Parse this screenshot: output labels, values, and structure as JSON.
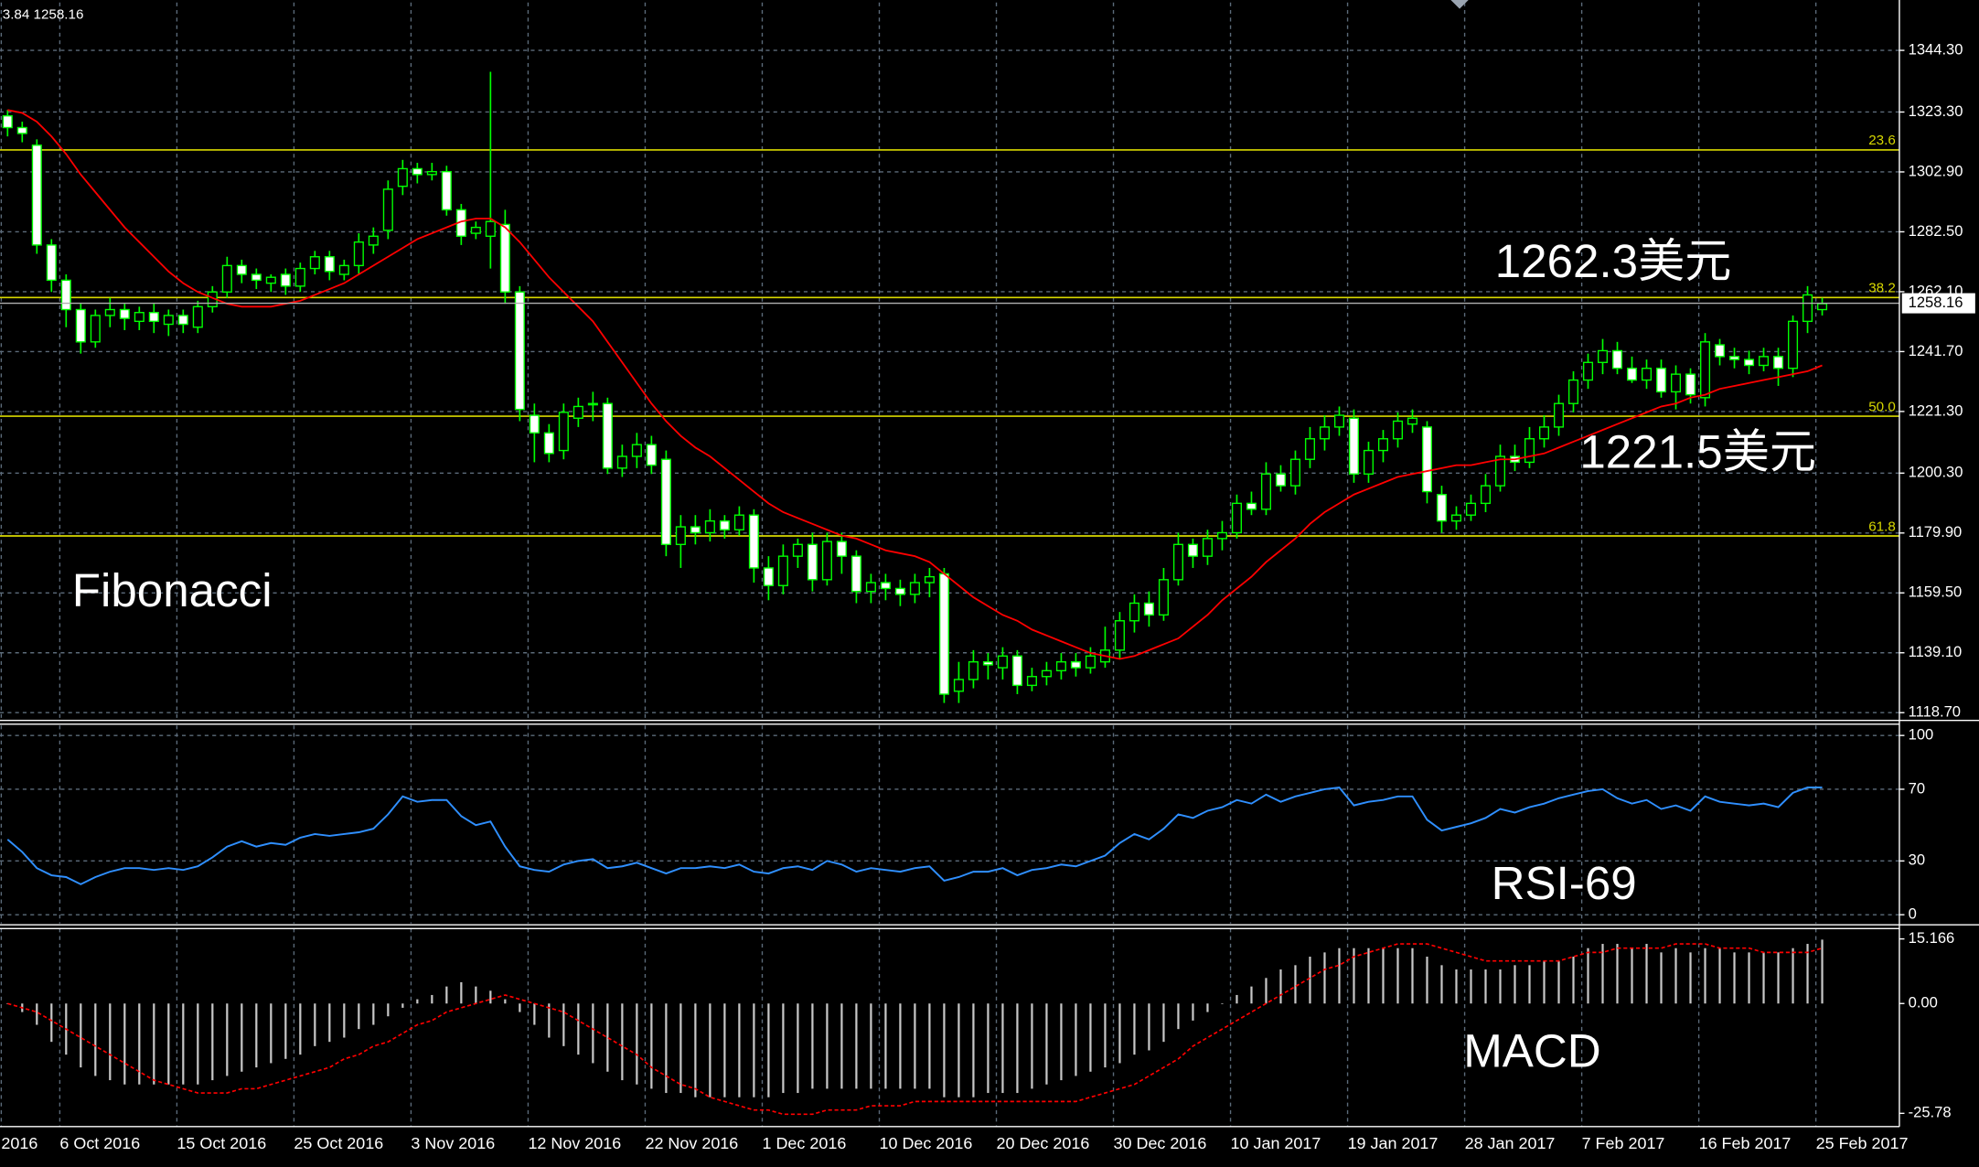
{
  "chart_data": [
    {
      "type": "candlestick",
      "header": "3.84 1258.16",
      "categories": [
        "2016",
        null,
        null,
        null,
        "6 Oct 2016",
        null,
        null,
        null,
        null,
        null,
        null,
        null,
        "15 Oct 2016",
        null,
        null,
        null,
        null,
        null,
        null,
        null,
        "25 Oct 2016",
        null,
        null,
        null,
        null,
        null,
        null,
        null,
        "3 Nov 2016",
        null,
        null,
        null,
        null,
        null,
        null,
        null,
        "12 Nov 2016",
        null,
        null,
        null,
        null,
        null,
        null,
        null,
        "22 Nov 2016",
        null,
        null,
        null,
        null,
        null,
        null,
        null,
        "1 Dec 2016",
        null,
        null,
        null,
        null,
        null,
        null,
        null,
        "10 Dec 2016",
        null,
        null,
        null,
        null,
        null,
        null,
        null,
        "20 Dec 2016",
        null,
        null,
        null,
        null,
        null,
        null,
        null,
        "30 Dec 2016",
        null,
        null,
        null,
        null,
        null,
        null,
        null,
        "10 Jan 2017",
        null,
        null,
        null,
        null,
        null,
        null,
        null,
        "19 Jan 2017",
        null,
        null,
        null,
        null,
        null,
        null,
        null,
        "28 Jan 2017",
        null,
        null,
        null,
        null,
        null,
        null,
        null,
        "7 Feb 2017",
        null,
        null,
        null,
        null,
        null,
        null,
        null,
        "16 Feb 2017",
        null,
        null,
        null,
        null,
        null,
        null,
        null,
        "25 Feb 2017"
      ],
      "open": [
        1322,
        1318,
        1312,
        1278,
        1266,
        1256,
        1245,
        1254,
        1256,
        1252,
        1255,
        1251,
        1254,
        1250,
        1257,
        1262,
        1271,
        1268,
        1265,
        1268,
        1264,
        1270,
        1274,
        1268,
        1271,
        1278,
        1283,
        1298,
        1304,
        1302,
        1303,
        1290,
        1282,
        1281,
        1285,
        1262,
        1220,
        1214,
        1208,
        1219,
        1224,
        1224,
        1202,
        1206,
        1210,
        1205,
        1176,
        1182,
        1180,
        1184,
        1181,
        1186,
        1168,
        1162,
        1172,
        1176,
        1164,
        1177,
        1172,
        1160,
        1163,
        1161,
        1159,
        1163,
        1166,
        1126,
        1130,
        1136,
        1134,
        1138,
        1128,
        1131,
        1133,
        1136,
        1134,
        1136,
        1140,
        1150,
        1156,
        1152,
        1164,
        1176,
        1172,
        1178,
        1180,
        1190,
        1188,
        1200,
        1196,
        1205,
        1212,
        1216,
        1219,
        1200,
        1208,
        1212,
        1217,
        1216,
        1193,
        1184,
        1186,
        1190,
        1196,
        1206,
        1204,
        1212,
        1216,
        1224,
        1232,
        1238,
        1242,
        1236,
        1232,
        1236,
        1228,
        1234,
        1226,
        1244,
        1240,
        1239,
        1237,
        1240,
        1236,
        1252,
        1256
      ],
      "high": [
        1324,
        1320,
        1314,
        1280,
        1268,
        1258,
        1256,
        1260,
        1258,
        1257,
        1258,
        1256,
        1256,
        1259,
        1264,
        1274,
        1273,
        1270,
        1268,
        1270,
        1272,
        1276,
        1276,
        1273,
        1282,
        1284,
        1300,
        1307,
        1306,
        1306,
        1305,
        1292,
        1286,
        1337,
        1290,
        1264,
        1224,
        1217,
        1224,
        1226,
        1228,
        1226,
        1210,
        1214,
        1213,
        1208,
        1186,
        1186,
        1188,
        1186,
        1189,
        1188,
        1172,
        1176,
        1178,
        1180,
        1180,
        1180,
        1174,
        1166,
        1166,
        1164,
        1166,
        1168,
        1168,
        1136,
        1140,
        1139,
        1141,
        1140,
        1134,
        1136,
        1139,
        1139,
        1141,
        1148,
        1153,
        1159,
        1160,
        1168,
        1180,
        1178,
        1181,
        1184,
        1193,
        1194,
        1204,
        1203,
        1208,
        1216,
        1220,
        1223,
        1222,
        1211,
        1215,
        1221,
        1222,
        1218,
        1196,
        1189,
        1193,
        1200,
        1210,
        1210,
        1216,
        1220,
        1227,
        1235,
        1241,
        1246,
        1245,
        1240,
        1239,
        1239,
        1237,
        1236,
        1248,
        1246,
        1243,
        1242,
        1243,
        1243,
        1254,
        1264,
        1260
      ],
      "low": [
        1315,
        1313,
        1275,
        1262,
        1250,
        1241,
        1243,
        1250,
        1249,
        1249,
        1248,
        1247,
        1248,
        1248,
        1255,
        1260,
        1265,
        1263,
        1262,
        1261,
        1262,
        1268,
        1266,
        1266,
        1268,
        1275,
        1280,
        1295,
        1299,
        1300,
        1288,
        1278,
        1280,
        1270,
        1258,
        1218,
        1204,
        1204,
        1205,
        1216,
        1218,
        1200,
        1199,
        1202,
        1200,
        1172,
        1168,
        1176,
        1177,
        1178,
        1179,
        1163,
        1157,
        1159,
        1168,
        1160,
        1162,
        1166,
        1156,
        1156,
        1157,
        1155,
        1156,
        1158,
        1122,
        1122,
        1127,
        1130,
        1130,
        1125,
        1126,
        1128,
        1130,
        1131,
        1132,
        1134,
        1137,
        1146,
        1148,
        1150,
        1162,
        1168,
        1169,
        1174,
        1178,
        1186,
        1186,
        1194,
        1193,
        1202,
        1208,
        1213,
        1197,
        1197,
        1204,
        1209,
        1214,
        1190,
        1180,
        1181,
        1184,
        1187,
        1194,
        1201,
        1202,
        1209,
        1213,
        1221,
        1229,
        1234,
        1234,
        1231,
        1229,
        1226,
        1222,
        1224,
        1223,
        1237,
        1236,
        1234,
        1235,
        1230,
        1233,
        1248,
        1254
      ],
      "close": [
        1318,
        1316,
        1278,
        1266,
        1256,
        1245,
        1254,
        1256,
        1253,
        1255,
        1252,
        1254,
        1251,
        1257,
        1262,
        1271,
        1268,
        1266,
        1267,
        1264,
        1270,
        1274,
        1269,
        1271,
        1279,
        1281,
        1297,
        1304,
        1302,
        1303,
        1290,
        1281,
        1284,
        1286,
        1262,
        1222,
        1214,
        1207,
        1221,
        1223,
        1224,
        1202,
        1206,
        1210,
        1203,
        1176,
        1182,
        1180,
        1184,
        1181,
        1186,
        1168,
        1162,
        1172,
        1176,
        1164,
        1177,
        1172,
        1160,
        1163,
        1161,
        1159,
        1163,
        1165,
        1125,
        1130,
        1136,
        1135,
        1138,
        1128,
        1131,
        1133,
        1136,
        1134,
        1138,
        1140,
        1150,
        1156,
        1152,
        1164,
        1176,
        1172,
        1178,
        1180,
        1190,
        1188,
        1200,
        1196,
        1205,
        1212,
        1216,
        1220,
        1200,
        1208,
        1212,
        1218,
        1219,
        1194,
        1184,
        1186,
        1190,
        1196,
        1206,
        1204,
        1212,
        1216,
        1224,
        1232,
        1238,
        1242,
        1236,
        1232,
        1236,
        1228,
        1234,
        1227,
        1245,
        1240,
        1239,
        1237,
        1240,
        1236,
        1252,
        1261,
        1258
      ],
      "bull_color": "#000000",
      "bear_color": "#ffffff",
      "candle_color": "#00ff00",
      "moving_average": {
        "color": "#ff0000",
        "values": [
          1324,
          1323,
          1320,
          1315,
          1309,
          1302,
          1296,
          1290,
          1284,
          1279,
          1274,
          1269,
          1265,
          1262,
          1260,
          1258,
          1257,
          1257,
          1257,
          1258,
          1259,
          1261,
          1263,
          1265,
          1268,
          1271,
          1274,
          1277,
          1280,
          1282,
          1284,
          1286,
          1287,
          1287,
          1284,
          1279,
          1273,
          1267,
          1262,
          1257,
          1252,
          1245,
          1238,
          1231,
          1224,
          1218,
          1213,
          1209,
          1206,
          1202,
          1198,
          1194,
          1190,
          1187,
          1185,
          1183,
          1181,
          1179,
          1178,
          1176,
          1174,
          1173,
          1172,
          1170,
          1166,
          1162,
          1158,
          1155,
          1152,
          1150,
          1147,
          1145,
          1143,
          1141,
          1139,
          1138,
          1137,
          1138,
          1140,
          1142,
          1144,
          1148,
          1152,
          1157,
          1161,
          1165,
          1170,
          1174,
          1178,
          1183,
          1187,
          1190,
          1193,
          1195,
          1197,
          1199,
          1200,
          1201,
          1202,
          1203,
          1203,
          1204,
          1205,
          1205,
          1206,
          1207,
          1209,
          1211,
          1213,
          1215,
          1217,
          1219,
          1221,
          1223,
          1224,
          1226,
          1227,
          1229,
          1230,
          1231,
          1232,
          1233,
          1234,
          1235,
          1237
        ]
      },
      "ylim": [
        1116.5,
        1360.6
      ],
      "yticks": [
        {
          "value": 1118.7,
          "label": "1118.70"
        },
        {
          "value": 1139.1,
          "label": "1139.10"
        },
        {
          "value": 1159.5,
          "label": "1159.50"
        },
        {
          "value": 1179.9,
          "label": "1179.90"
        },
        {
          "value": 1200.3,
          "label": "1200.30"
        },
        {
          "value": 1221.3,
          "label": "1221.30"
        },
        {
          "value": 1241.7,
          "label": "1241.70"
        },
        {
          "value": 1262.1,
          "label": "1262.10"
        },
        {
          "value": 1282.5,
          "label": "1282.50"
        },
        {
          "value": 1302.9,
          "label": "1302.90"
        },
        {
          "value": 1323.3,
          "label": "1323.30"
        },
        {
          "value": 1344.3,
          "label": "1344.30"
        }
      ],
      "grid": true,
      "fibonacci": {
        "color": "#d8d800",
        "levels": [
          {
            "value": 1310.4,
            "label": "23.6"
          },
          {
            "value": 1260.1,
            "label": "38.2"
          },
          {
            "value": 1219.7,
            "label": "50.0"
          },
          {
            "value": 1178.9,
            "label": "61.8"
          }
        ]
      },
      "last_price": 1258.16,
      "annotations": [
        "1262.3美元",
        "1221.5美元",
        "Fibonacci"
      ]
    },
    {
      "type": "line",
      "annotation": "RSI-69",
      "series": [
        {
          "color": "#2f8fff",
          "values": [
            42,
            35,
            26,
            22,
            21,
            17,
            21,
            24,
            26,
            26,
            25,
            26,
            25,
            27,
            32,
            38,
            41,
            38,
            40,
            39,
            43,
            45,
            44,
            45,
            46,
            48,
            56,
            66,
            63,
            64,
            64,
            55,
            50,
            52,
            38,
            27,
            25,
            24,
            28,
            30,
            31,
            26,
            27,
            29,
            26,
            23,
            26,
            26,
            27,
            26,
            28,
            24,
            23,
            26,
            27,
            25,
            30,
            28,
            24,
            26,
            25,
            24,
            26,
            27,
            19,
            21,
            24,
            24,
            26,
            22,
            25,
            26,
            28,
            27,
            30,
            33,
            40,
            45,
            42,
            48,
            56,
            54,
            58,
            60,
            64,
            62,
            67,
            63,
            66,
            68,
            70,
            71,
            61,
            63,
            64,
            66,
            66,
            53,
            47,
            49,
            51,
            54,
            59,
            57,
            60,
            62,
            65,
            67,
            69,
            70,
            65,
            62,
            64,
            59,
            61,
            58,
            66,
            63,
            62,
            61,
            62,
            60,
            68,
            71,
            71
          ]
        }
      ],
      "ylim": [
        -4.9,
        105.6
      ],
      "yticks": [
        0,
        30,
        70,
        100
      ],
      "grid": true
    },
    {
      "type": "macd",
      "annotation": "MACD",
      "histogram": {
        "color": "#c8c8c8",
        "values": [
          0,
          -2,
          -5,
          -9,
          -12,
          -15,
          -17,
          -18,
          -19,
          -19,
          -19,
          -19,
          -19,
          -19,
          -18,
          -17,
          -16,
          -15,
          -14,
          -13,
          -12,
          -10,
          -9,
          -8,
          -6,
          -5,
          -3,
          -1,
          1,
          2,
          4,
          5,
          4,
          3,
          1,
          -2,
          -5,
          -8,
          -10,
          -12,
          -14,
          -16,
          -18,
          -19,
          -20,
          -21,
          -21,
          -22,
          -22,
          -22,
          -22,
          -22,
          -22,
          -21,
          -21,
          -20,
          -20,
          -20,
          -20,
          -20,
          -20,
          -20,
          -20,
          -20,
          -22,
          -22,
          -22,
          -21,
          -21,
          -21,
          -20,
          -19,
          -18,
          -17,
          -16,
          -15,
          -14,
          -12,
          -11,
          -9,
          -6,
          -4,
          -2,
          0,
          2,
          4,
          6,
          8,
          9,
          11,
          12,
          13,
          13,
          13,
          13,
          13,
          13,
          11,
          9,
          8,
          8,
          8,
          8,
          9,
          9,
          10,
          10,
          11,
          13,
          14,
          14,
          13,
          14,
          12,
          13,
          12,
          13,
          13,
          12,
          12,
          12,
          12,
          13,
          14,
          15
        ]
      },
      "signal": {
        "color": "#ff0000",
        "values": [
          0,
          -1,
          -2,
          -4,
          -6,
          -8,
          -10,
          -12,
          -14,
          -16,
          -18,
          -19,
          -20,
          -21,
          -21,
          -21,
          -20,
          -20,
          -19,
          -18,
          -17,
          -16,
          -15,
          -13,
          -12,
          -10,
          -9,
          -7,
          -5,
          -4,
          -2,
          -1,
          0,
          1,
          2,
          1,
          0,
          -1,
          -2,
          -4,
          -6,
          -8,
          -10,
          -12,
          -15,
          -17,
          -19,
          -20,
          -22,
          -23,
          -24,
          -25,
          -25,
          -26,
          -26,
          -26,
          -25,
          -25,
          -25,
          -24,
          -24,
          -24,
          -23,
          -23,
          -23,
          -23,
          -23,
          -23,
          -23,
          -23,
          -23,
          -23,
          -23,
          -23,
          -22,
          -21,
          -20,
          -19,
          -17,
          -15,
          -13,
          -10,
          -8,
          -6,
          -4,
          -2,
          0,
          2,
          4,
          6,
          8,
          9,
          11,
          12,
          13,
          14,
          14,
          14,
          13,
          12,
          11,
          10,
          10,
          10,
          10,
          10,
          10,
          11,
          12,
          12,
          13,
          13,
          13,
          13,
          14,
          14,
          14,
          13,
          13,
          13,
          12,
          12,
          12,
          12,
          13
        ]
      },
      "ylim": [
        -28.9,
        17.6
      ],
      "yticks": [
        -25.78,
        {
          "value": 0,
          "label": "0.00"
        },
        15.166
      ]
    }
  ]
}
